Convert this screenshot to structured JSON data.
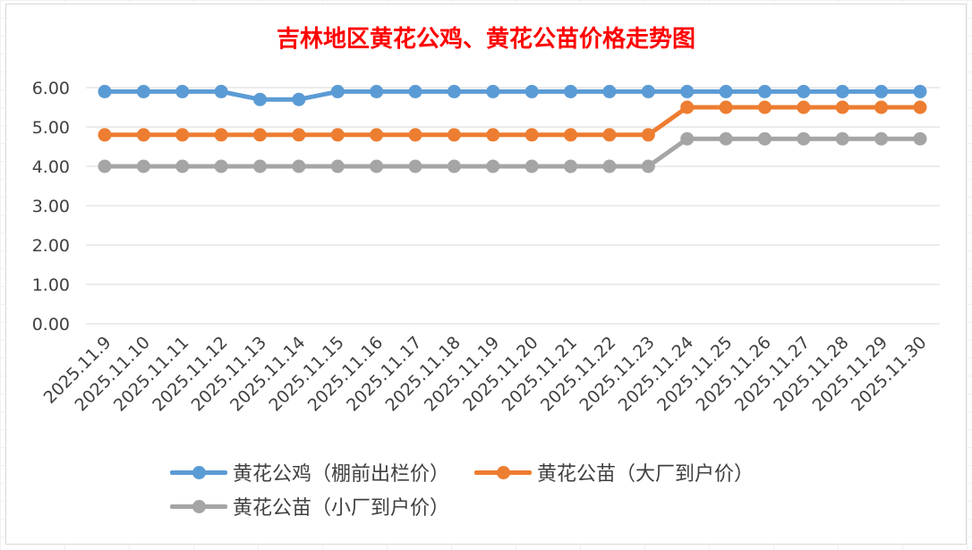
{
  "chart_data": {
    "type": "line",
    "title": "吉林地区黄花公鸡、黄花公苗价格走势图",
    "title_color": "#ff0000",
    "categories": [
      "2025.11.9",
      "2025.11.10",
      "2025.11.11",
      "2025.11.12",
      "2025.11.13",
      "2025.11.14",
      "2025.11.15",
      "2025.11.16",
      "2025.11.17",
      "2025.11.18",
      "2025.11.19",
      "2025.11.20",
      "2025.11.21",
      "2025.11.22",
      "2025.11.23",
      "2025.11.24",
      "2025.11.25",
      "2025.11.26",
      "2025.11.27",
      "2025.11.28",
      "2025.11.29",
      "2025.11.30"
    ],
    "y_ticks": [
      "0.00",
      "1.00",
      "2.00",
      "3.00",
      "4.00",
      "5.00",
      "6.00"
    ],
    "ylim": [
      0,
      6
    ],
    "grid": true,
    "legend_position": "bottom",
    "series": [
      {
        "name": "黄花公鸡（棚前出栏价）",
        "color": "#5b9bd5",
        "values": [
          5.9,
          5.9,
          5.9,
          5.9,
          5.7,
          5.7,
          5.9,
          5.9,
          5.9,
          5.9,
          5.9,
          5.9,
          5.9,
          5.9,
          5.9,
          5.9,
          5.9,
          5.9,
          5.9,
          5.9,
          5.9,
          5.9
        ]
      },
      {
        "name": "黄花公苗（大厂到户价）",
        "color": "#ed7d31",
        "values": [
          4.8,
          4.8,
          4.8,
          4.8,
          4.8,
          4.8,
          4.8,
          4.8,
          4.8,
          4.8,
          4.8,
          4.8,
          4.8,
          4.8,
          4.8,
          5.5,
          5.5,
          5.5,
          5.5,
          5.5,
          5.5,
          5.5
        ]
      },
      {
        "name": "黄花公苗（小厂到户价）",
        "color": "#a5a5a5",
        "values": [
          4.0,
          4.0,
          4.0,
          4.0,
          4.0,
          4.0,
          4.0,
          4.0,
          4.0,
          4.0,
          4.0,
          4.0,
          4.0,
          4.0,
          4.0,
          4.7,
          4.7,
          4.7,
          4.7,
          4.7,
          4.7,
          4.7
        ]
      }
    ]
  }
}
